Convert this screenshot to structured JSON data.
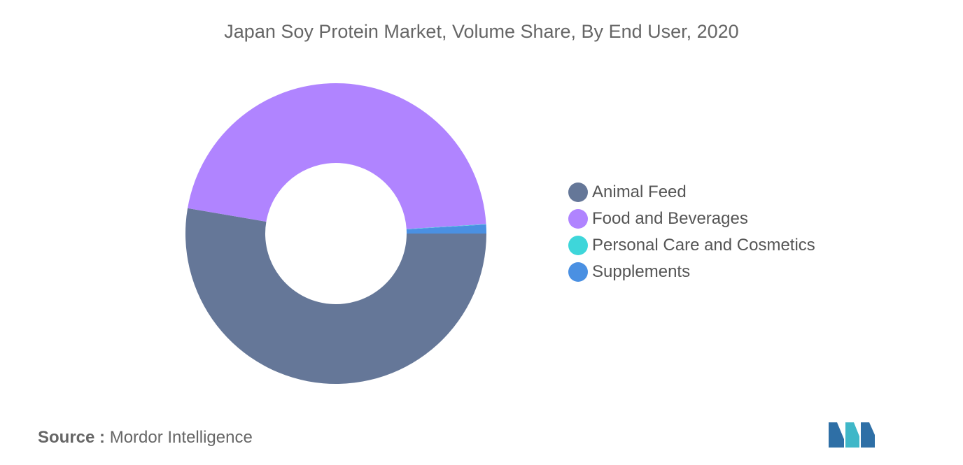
{
  "title": "Japan Soy Protein Market, Volume Share, By End User, 2020",
  "source": {
    "prefix": "Source :",
    "text": "Mordor Intelligence"
  },
  "chart_data": {
    "type": "pie",
    "donut": true,
    "title": "Japan Soy Protein Market, Volume Share, By End User, 2020",
    "legend_position": "right",
    "slices": [
      {
        "name": "Animal Feed",
        "value": 52.7,
        "color": "#657798"
      },
      {
        "name": "Food and Beverages",
        "value": 46.3,
        "color": "#B084FF"
      },
      {
        "name": "Personal Care and Cosmetics",
        "value": 0.05,
        "color": "#3ED6DA"
      },
      {
        "name": "Supplements",
        "value": 0.95,
        "color": "#4A90E2"
      }
    ]
  }
}
